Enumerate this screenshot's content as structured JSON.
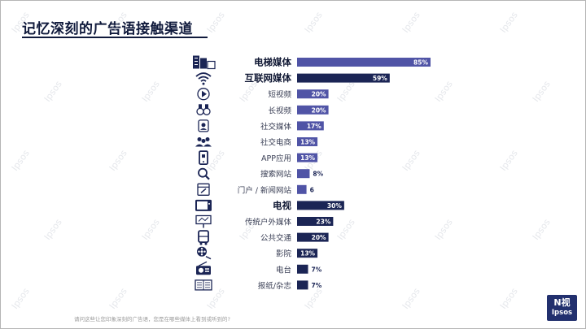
{
  "header": {
    "title": "记忆深刻的广告语接触渠道"
  },
  "footnote": "请问这些让您印象深刻的广告语，您是在哪些媒体上看到或听到的?",
  "brand": {
    "logo_top": "N视",
    "logo_bottom": "Ipsos"
  },
  "watermark": "Ipsos",
  "colors": {
    "highlight_bar": "#5054a6",
    "main_bar": "#1b2555",
    "minor_bar": "#1b2555",
    "label_dark": "#0f1733",
    "label_normal": "#3a3f55"
  },
  "chart_data": {
    "type": "bar",
    "orientation": "horizontal",
    "title": "记忆深刻的广告语接触渠道",
    "unit": "%",
    "categories": [
      "电梯媒体",
      "互联网媒体",
      "短视频",
      "长视频",
      "社交媒体",
      "社交电商",
      "APP应用",
      "搜索网站",
      "门户 / 新闻网站",
      "电视",
      "传统户外媒体",
      "公共交通",
      "影院",
      "电台",
      "报纸/杂志"
    ],
    "values": [
      85,
      59,
      20,
      20,
      17,
      13,
      13,
      8,
      6,
      30,
      23,
      20,
      13,
      7,
      7
    ],
    "value_labels": [
      "85%",
      "59%",
      "20%",
      "20%",
      "17%",
      "13%",
      "13%",
      "8%",
      "6",
      "30%",
      "23%",
      "20%",
      "13%",
      "7%",
      "7%"
    ],
    "bold_categories": [
      "电梯媒体",
      "互联网媒体",
      "电视"
    ],
    "group": [
      "elevator",
      "internet",
      "internet",
      "internet",
      "internet",
      "internet",
      "internet",
      "internet",
      "internet",
      "tv",
      "other",
      "other",
      "other",
      "other",
      "other"
    ],
    "icons": [
      "building-icon",
      "wifi-icon",
      "play-icon",
      "binoculars-icon",
      "social-icon",
      "people-icon",
      "phone-app-icon",
      "search-icon",
      "browser-icon",
      "tv-icon",
      "billboard-icon",
      "bus-icon",
      "film-reel-icon",
      "radio-icon",
      "newspaper-icon"
    ],
    "xlim": [
      0,
      85
    ]
  }
}
